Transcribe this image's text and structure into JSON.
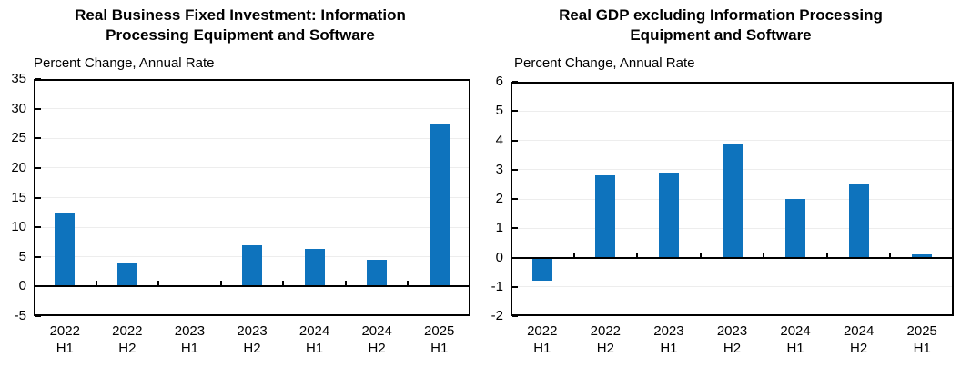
{
  "page": {
    "background_color": "#ffffff",
    "text_color": "#000000",
    "bar_color": "#0E73BD"
  },
  "chart_data": [
    {
      "type": "bar",
      "title": "Real Business Fixed Investment: Information Processing Equipment and Software",
      "title_lines": [
        "Real Business Fixed Investment: Information",
        "Processing Equipment and Software"
      ],
      "units_label": "Percent Change, Annual Rate",
      "categories": [
        "2022 H1",
        "2022 H2",
        "2023 H1",
        "2023 H2",
        "2024 H1",
        "2024 H2",
        "2025 H1"
      ],
      "values": [
        12.4,
        3.9,
        -0.1,
        7.0,
        6.3,
        4.5,
        27.5
      ],
      "xlabel": "",
      "ylabel": "Percent Change, Annual Rate",
      "ylim": [
        -5,
        35
      ],
      "ytick_step": 5,
      "ytick_labels": [
        "35",
        "30",
        "25",
        "20",
        "15",
        "10",
        "5",
        "0",
        "-5"
      ],
      "bar_color": "#0E73BD",
      "grid": "faint horizontal gridlines",
      "legend": "none",
      "zero_line": true
    },
    {
      "type": "bar",
      "title": "Real GDP excluding Information Processing Equipment and Software",
      "title_lines": [
        "Real GDP excluding Information Processing",
        "Equipment and Software"
      ],
      "units_label": "Percent Change, Annual Rate",
      "categories": [
        "2022 H1",
        "2022 H2",
        "2023 H1",
        "2023 H2",
        "2024 H1",
        "2024 H2",
        "2025 H1"
      ],
      "values": [
        -0.8,
        2.8,
        2.9,
        3.9,
        2.0,
        2.5,
        0.1
      ],
      "xlabel": "",
      "ylabel": "Percent Change, Annual Rate",
      "ylim": [
        -2,
        6
      ],
      "ytick_step": 1,
      "ytick_labels": [
        "6",
        "5",
        "4",
        "3",
        "2",
        "1",
        "0",
        "-1",
        "-2"
      ],
      "bar_color": "#0E73BD",
      "grid": "faint horizontal gridlines",
      "legend": "none",
      "zero_line": true
    }
  ]
}
